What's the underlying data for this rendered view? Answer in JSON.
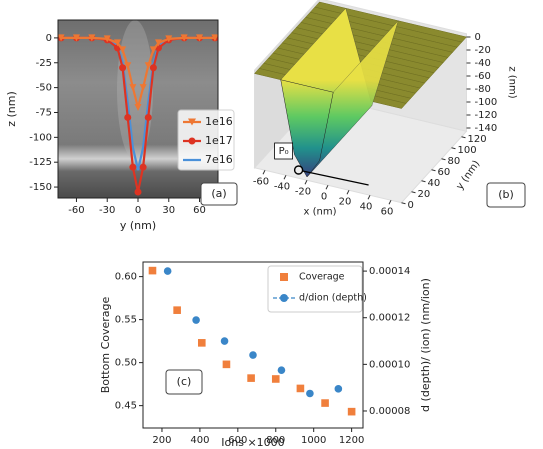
{
  "chart_data": [
    {
      "type": "line",
      "label": "(a)",
      "xlabel": "y (nm)",
      "ylabel": "z (nm)",
      "xlim": [
        -78,
        78
      ],
      "xticks": [
        -60,
        -30,
        0,
        30,
        60
      ],
      "ylim": [
        -161,
        18
      ],
      "yticks": [
        0,
        -25,
        -50,
        -75,
        -100,
        -125,
        -150
      ],
      "x": [
        -75,
        -60,
        -45,
        -30,
        -20,
        -15,
        -10,
        -5,
        0,
        5,
        10,
        15,
        20,
        30,
        45,
        60,
        75
      ],
      "series": [
        {
          "name": "1e16",
          "color": "#ee7733",
          "marker": "triangle-down",
          "values": [
            0,
            0,
            0,
            -1,
            -5,
            -12,
            -28,
            -50,
            -70,
            -50,
            -28,
            -12,
            -5,
            -1,
            0,
            0,
            0
          ]
        },
        {
          "name": "1e17",
          "color": "#dd3322",
          "marker": "circle",
          "values": [
            0,
            0,
            0,
            -2,
            -10,
            -30,
            -80,
            -130,
            -155,
            -130,
            -80,
            -30,
            -10,
            -2,
            0,
            0,
            0
          ]
        },
        {
          "name": "7e16",
          "color": "#4a90d9",
          "marker": "none",
          "values": [
            0,
            0,
            0,
            -1,
            -8,
            -25,
            -65,
            -110,
            -133,
            -110,
            -65,
            -25,
            -8,
            -1,
            0,
            0,
            0
          ]
        }
      ]
    },
    {
      "type": "surface",
      "label": "(b)",
      "xlabel": "x (nm)",
      "ylabel": "y (nm)",
      "zlabel": "z (nm)",
      "annotation": "P₀",
      "xlim": [
        -70,
        70
      ],
      "xticks": [
        -60,
        -40,
        -20,
        0,
        20,
        40,
        60
      ],
      "ylim": [
        0,
        130
      ],
      "yticks": [
        0,
        20,
        40,
        60,
        80,
        100,
        120
      ],
      "zlim": [
        -145,
        5
      ],
      "zticks": [
        0,
        -20,
        -40,
        -60,
        -80,
        -100,
        -120,
        -140
      ]
    },
    {
      "type": "scatter",
      "label": "(c)",
      "xlabel": "Ions ×1000",
      "ylabel": "Bottom Coverage",
      "y2label": "d (depth)/ (ion) (nm/ion)",
      "xlim": [
        100,
        1260
      ],
      "xticks": [
        200,
        400,
        600,
        800,
        1000,
        1200
      ],
      "ylim": [
        0.424,
        0.617
      ],
      "yticks": [
        0.45,
        {
          "value": 0.5,
          "label": "0.50"
        },
        0.55,
        {
          "value": 0.6,
          "label": "0.60"
        }
      ],
      "y2lim": [
        7.27e-05,
        0.0001439
      ],
      "y2ticks": [
        {
          "value": 8e-05,
          "label": "0.00008"
        },
        {
          "value": 0.0001,
          "label": "0.00010"
        },
        {
          "value": 0.00012,
          "label": "0.00012"
        },
        {
          "value": 0.00014,
          "label": "0.00014"
        }
      ],
      "series": [
        {
          "name": "Coverage",
          "color": "#f07f3c",
          "marker": "square",
          "x": [
            150,
            280,
            410,
            540,
            670,
            800,
            930,
            1060,
            1200
          ],
          "values": [
            0.607,
            0.561,
            0.523,
            0.498,
            0.482,
            0.481,
            0.47,
            0.453,
            0.443
          ]
        },
        {
          "name": "d/dion (depth)",
          "color": "#3a86c8",
          "marker": "circle",
          "axis": "y2",
          "x": [
            230,
            380,
            530,
            680,
            830,
            980,
            1130
          ],
          "values": [
            0.00014,
            0.000119,
            0.00011,
            0.000104,
            9.75e-05,
            8.75e-05,
            8.95e-05
          ]
        }
      ]
    }
  ]
}
